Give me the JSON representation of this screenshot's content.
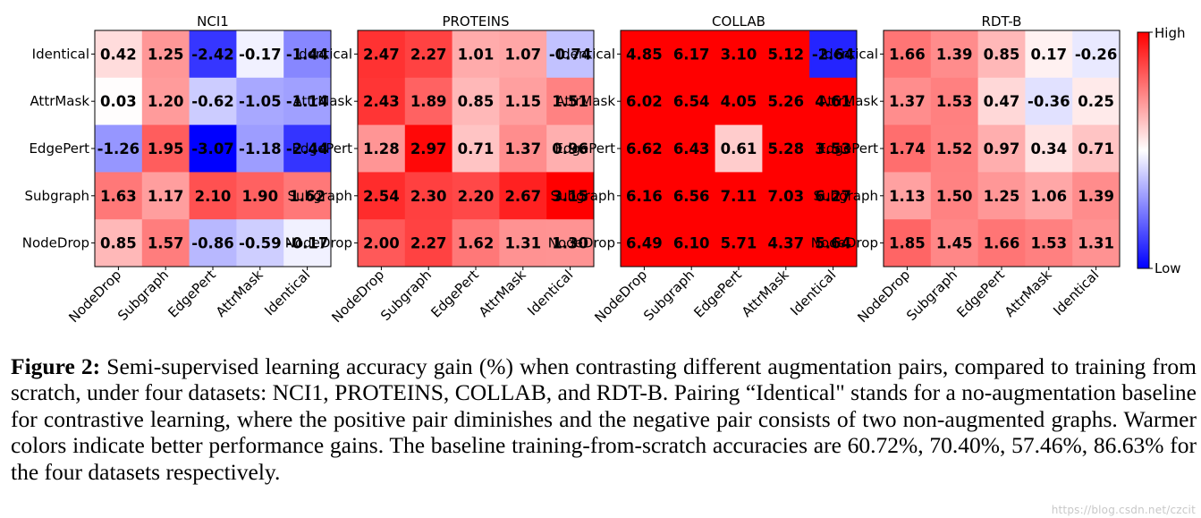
{
  "chart_data": [
    {
      "type": "heatmap",
      "title": "NCI1",
      "rows": [
        "Identical",
        "AttrMask",
        "EdgePert",
        "Subgraph",
        "NodeDrop"
      ],
      "cols": [
        "NodeDrop",
        "Subgraph",
        "EdgePert",
        "AttrMask",
        "Identical"
      ],
      "values": [
        [
          0.42,
          1.25,
          -2.42,
          -0.17,
          -1.44
        ],
        [
          0.03,
          1.2,
          -0.62,
          -1.05,
          -1.14
        ],
        [
          -1.26,
          1.95,
          -3.07,
          -1.18,
          -2.44
        ],
        [
          1.63,
          1.17,
          2.1,
          1.9,
          1.62
        ],
        [
          0.85,
          1.57,
          -0.86,
          -0.59,
          -0.17
        ]
      ]
    },
    {
      "type": "heatmap",
      "title": "PROTEINS",
      "rows": [
        "Identical",
        "AttrMask",
        "EdgePert",
        "Subgraph",
        "NodeDrop"
      ],
      "cols": [
        "NodeDrop",
        "Subgraph",
        "EdgePert",
        "AttrMask",
        "Identical"
      ],
      "values": [
        [
          2.47,
          2.27,
          1.01,
          1.07,
          -0.74
        ],
        [
          2.43,
          1.89,
          0.85,
          1.15,
          1.51
        ],
        [
          1.28,
          2.97,
          0.71,
          1.37,
          0.96
        ],
        [
          2.54,
          2.3,
          2.2,
          2.67,
          3.15
        ],
        [
          2.0,
          2.27,
          1.62,
          1.31,
          1.3
        ]
      ]
    },
    {
      "type": "heatmap",
      "title": "COLLAB",
      "rows": [
        "Identical",
        "AttrMask",
        "EdgePert",
        "Subgraph",
        "NodeDrop"
      ],
      "cols": [
        "NodeDrop",
        "Subgraph",
        "EdgePert",
        "AttrMask",
        "Identical"
      ],
      "values": [
        [
          4.85,
          6.17,
          3.1,
          5.12,
          -2.64
        ],
        [
          6.02,
          6.54,
          4.05,
          5.26,
          4.61
        ],
        [
          6.62,
          6.43,
          0.61,
          5.28,
          3.53
        ],
        [
          6.16,
          6.56,
          7.11,
          7.03,
          6.27
        ],
        [
          6.49,
          6.1,
          5.71,
          4.37,
          5.64
        ]
      ]
    },
    {
      "type": "heatmap",
      "title": "RDT-B",
      "rows": [
        "Identical",
        "AttrMask",
        "EdgePert",
        "Subgraph",
        "NodeDrop"
      ],
      "cols": [
        "NodeDrop",
        "Subgraph",
        "EdgePert",
        "AttrMask",
        "Identical"
      ],
      "values": [
        [
          1.66,
          1.39,
          0.85,
          0.17,
          -0.26
        ],
        [
          1.37,
          1.53,
          0.47,
          -0.36,
          0.25
        ],
        [
          1.74,
          1.52,
          0.97,
          0.34,
          0.71
        ],
        [
          1.13,
          1.5,
          1.25,
          1.06,
          1.39
        ],
        [
          1.85,
          1.45,
          1.66,
          1.53,
          1.31
        ]
      ]
    }
  ],
  "colorbar": {
    "high_label": "High",
    "low_label": "Low",
    "range": [
      -3.07,
      3.07
    ]
  },
  "caption": {
    "label": "Figure 2:",
    "text": "Semi-supervised learning accuracy gain (%) when contrasting different augmentation pairs, compared to training from scratch, under four datasets: NCI1, PROTEINS, COLLAB, and RDT-B. Pairing “Identical\" stands for a no-augmentation baseline for contrastive learning, where the positive pair diminishes and the negative pair consists of two non-augmented graphs. Warmer colors indicate better performance gains. The baseline training-from-scratch accuracies are 60.72%, 70.40%, 57.46%, 86.63% for the four datasets respectively."
  },
  "watermark": "https://blog.csdn.net/czcit"
}
